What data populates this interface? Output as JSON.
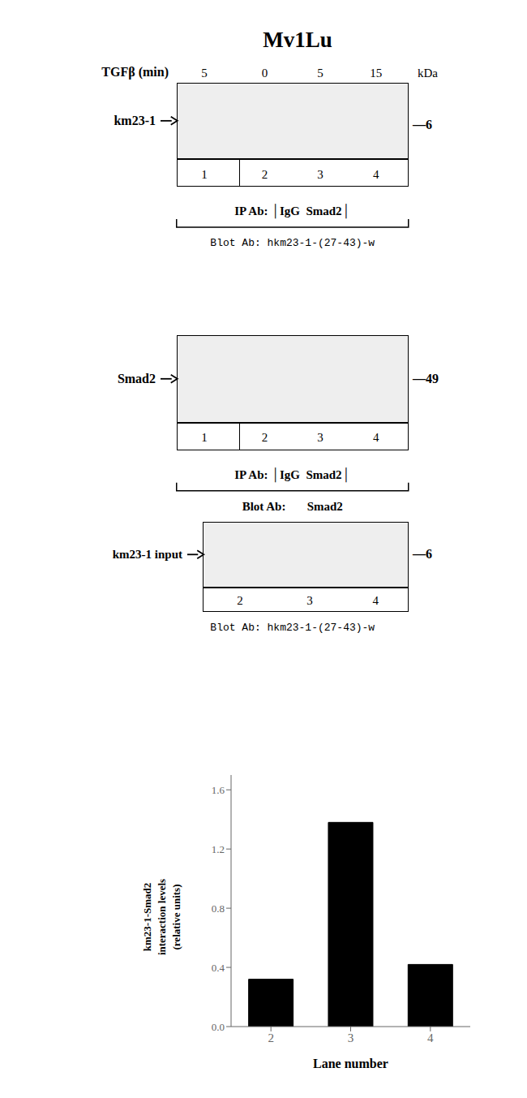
{
  "chart_data": {
    "type": "bar",
    "title": "Mv1Lu",
    "categories": [
      "2",
      "3",
      "4"
    ],
    "values": [
      0.32,
      1.38,
      0.42
    ],
    "color": "#000000",
    "xlabel": "Lane number",
    "ylabel": "km23-1-Smad2\ninteraction levels\n(relative units)",
    "ylim": [
      0,
      1.7
    ],
    "yticks": [
      {
        "value": 0,
        "label": "0.0"
      },
      0.4,
      0.8,
      1.2,
      1.6
    ],
    "annotations": [
      "TGFβ (min)",
      "5",
      "0",
      "5",
      "15",
      "km23-1",
      "kDa",
      "—6",
      "1",
      "2",
      "3",
      "4",
      "IP Ab: │IgG  Smad2│",
      "Blot Ab: hkm23-1-(27-43)-w",
      "Smad2",
      "—49",
      "1",
      "2",
      "3",
      "4",
      "IP Ab: │IgG  Smad2│",
      "Blot Ab:       Smad2",
      "km23-1 input",
      "—6",
      "2",
      "3",
      "4",
      "Blot Ab: hkm23-1-(27-43)-w"
    ]
  }
}
